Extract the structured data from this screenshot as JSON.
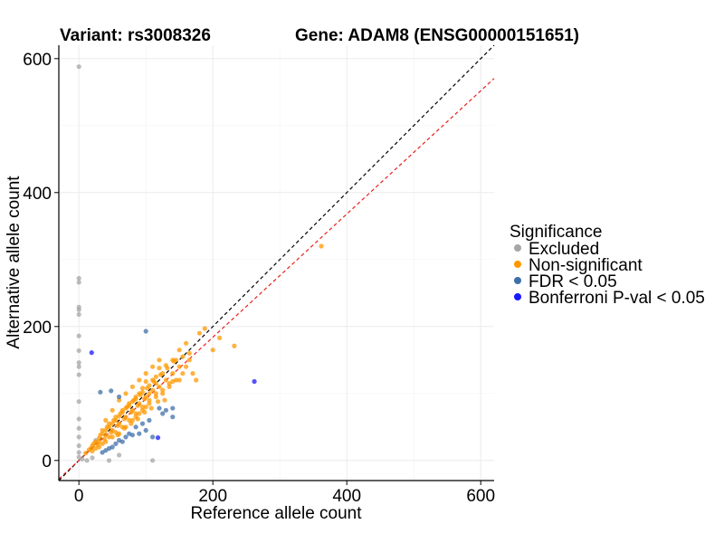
{
  "chart_data": {
    "type": "scatter",
    "title_left": "Variant: rs3008326",
    "title_right": "Gene: ADAM8 (ENSG00000151651)",
    "xlabel": "Reference allele count",
    "ylabel": "Alternative allele count",
    "xlim": [
      -30,
      620
    ],
    "ylim": [
      -30,
      620
    ],
    "xticks": [
      0,
      200,
      400,
      600
    ],
    "yticks": [
      0,
      200,
      400,
      600
    ],
    "grid": true,
    "legend": {
      "title": "Significance",
      "position": "right",
      "entries": [
        {
          "label": "Excluded",
          "color": "#a6a6a6"
        },
        {
          "label": "Non-significant",
          "color": "#ff9800"
        },
        {
          "label": "FDR < 0.05",
          "color": "#3f6fa8"
        },
        {
          "label": "Bonferroni P-val < 0.05",
          "color": "#1818ff"
        }
      ]
    },
    "reference_lines": [
      {
        "name": "identity",
        "slope": 1.0,
        "intercept": 0,
        "color": "#000000",
        "dash": "dashed"
      },
      {
        "name": "fitted",
        "slope": 0.92,
        "intercept": 0,
        "color": "#e8201a",
        "dash": "dashed"
      }
    ],
    "series": [
      {
        "name": "Excluded",
        "color": "#a6a6a6",
        "points": [
          [
            0,
            588
          ],
          [
            0,
            272
          ],
          [
            0,
            266
          ],
          [
            0,
            229
          ],
          [
            0,
            225
          ],
          [
            0,
            218
          ],
          [
            0,
            186
          ],
          [
            0,
            164
          ],
          [
            0,
            146
          ],
          [
            0,
            140
          ],
          [
            0,
            128
          ],
          [
            0,
            88
          ],
          [
            0,
            62
          ],
          [
            0,
            48
          ],
          [
            0,
            35
          ],
          [
            0,
            22
          ],
          [
            0,
            12
          ],
          [
            0,
            5
          ],
          [
            5,
            2
          ],
          [
            12,
            0
          ],
          [
            20,
            4
          ],
          [
            45,
            0
          ],
          [
            60,
            8
          ],
          [
            110,
            0
          ],
          [
            25,
            30
          ]
        ]
      },
      {
        "name": "Non-significant",
        "color": "#ff9800",
        "points": [
          [
            362,
            320
          ],
          [
            210,
            183
          ],
          [
            232,
            171
          ],
          [
            188,
            197
          ],
          [
            180,
            190
          ],
          [
            160,
            175
          ],
          [
            170,
            130
          ],
          [
            175,
            120
          ],
          [
            165,
            150
          ],
          [
            150,
            165
          ],
          [
            140,
            150
          ],
          [
            130,
            142
          ],
          [
            120,
            138
          ],
          [
            110,
            120
          ],
          [
            100,
            118
          ],
          [
            95,
            108
          ],
          [
            90,
            100
          ],
          [
            85,
            95
          ],
          [
            80,
            88
          ],
          [
            75,
            82
          ],
          [
            70,
            78
          ],
          [
            65,
            72
          ],
          [
            60,
            66
          ],
          [
            55,
            60
          ],
          [
            50,
            55
          ],
          [
            45,
            50
          ],
          [
            40,
            45
          ],
          [
            35,
            40
          ],
          [
            30,
            33
          ],
          [
            25,
            28
          ],
          [
            20,
            22
          ],
          [
            15,
            16
          ],
          [
            10,
            11
          ],
          [
            120,
            110
          ],
          [
            110,
            105
          ],
          [
            100,
            95
          ],
          [
            90,
            85
          ],
          [
            80,
            75
          ],
          [
            70,
            65
          ],
          [
            60,
            55
          ],
          [
            50,
            45
          ],
          [
            40,
            38
          ],
          [
            30,
            28
          ],
          [
            130,
            120
          ],
          [
            125,
            130
          ],
          [
            115,
            125
          ],
          [
            105,
            112
          ],
          [
            95,
            102
          ],
          [
            85,
            92
          ],
          [
            75,
            85
          ],
          [
            65,
            75
          ],
          [
            55,
            65
          ],
          [
            45,
            55
          ],
          [
            35,
            45
          ],
          [
            140,
            130
          ],
          [
            150,
            140
          ],
          [
            135,
            115
          ],
          [
            125,
            105
          ],
          [
            115,
            100
          ],
          [
            105,
            90
          ],
          [
            95,
            80
          ],
          [
            85,
            70
          ],
          [
            75,
            60
          ],
          [
            65,
            50
          ],
          [
            55,
            42
          ],
          [
            155,
            155
          ],
          [
            145,
            150
          ],
          [
            120,
            150
          ],
          [
            110,
            140
          ],
          [
            100,
            130
          ],
          [
            90,
            120
          ],
          [
            80,
            110
          ],
          [
            70,
            100
          ],
          [
            60,
            90
          ],
          [
            50,
            75
          ],
          [
            40,
            60
          ],
          [
            70,
            50
          ],
          [
            80,
            60
          ],
          [
            90,
            70
          ],
          [
            100,
            80
          ],
          [
            60,
            40
          ],
          [
            50,
            35
          ],
          [
            40,
            28
          ],
          [
            30,
            20
          ],
          [
            20,
            14
          ],
          [
            105,
            100
          ],
          [
            115,
            115
          ],
          [
            98,
            92
          ],
          [
            88,
            82
          ],
          [
            78,
            72
          ],
          [
            68,
            62
          ],
          [
            58,
            52
          ],
          [
            48,
            42
          ],
          [
            38,
            32
          ],
          [
            28,
            24
          ],
          [
            18,
            18
          ],
          [
            62,
            70
          ],
          [
            72,
            80
          ],
          [
            82,
            90
          ],
          [
            92,
            98
          ],
          [
            102,
            108
          ],
          [
            112,
            118
          ],
          [
            122,
            128
          ],
          [
            132,
            138
          ],
          [
            142,
            148
          ],
          [
            85,
            65
          ],
          [
            95,
            75
          ],
          [
            105,
            85
          ],
          [
            115,
            95
          ],
          [
            125,
            100
          ],
          [
            135,
            110
          ],
          [
            145,
            120
          ],
          [
            45,
            35
          ],
          [
            35,
            25
          ],
          [
            25,
            18
          ],
          [
            128,
            90
          ],
          [
            118,
            88
          ],
          [
            108,
            78
          ],
          [
            98,
            72
          ],
          [
            88,
            62
          ],
          [
            78,
            55
          ],
          [
            68,
            48
          ],
          [
            58,
            38
          ],
          [
            52,
            60
          ],
          [
            42,
            50
          ],
          [
            32,
            38
          ],
          [
            22,
            25
          ],
          [
            155,
            130
          ],
          [
            160,
            140
          ],
          [
            165,
            160
          ],
          [
            150,
            120
          ],
          [
            140,
            118
          ],
          [
            200,
            165
          ]
        ]
      },
      {
        "name": "FDR < 0.05",
        "color": "#3f6fa8",
        "points": [
          [
            100,
            193
          ],
          [
            48,
            104
          ],
          [
            32,
            102
          ],
          [
            60,
            95
          ],
          [
            140,
            78
          ],
          [
            120,
            78
          ],
          [
            130,
            75
          ],
          [
            140,
            65
          ],
          [
            100,
            45
          ],
          [
            90,
            40
          ],
          [
            80,
            38
          ],
          [
            70,
            35
          ],
          [
            60,
            30
          ],
          [
            50,
            20
          ],
          [
            40,
            15
          ],
          [
            110,
            35
          ],
          [
            85,
            50
          ],
          [
            95,
            55
          ],
          [
            75,
            40
          ],
          [
            55,
            25
          ],
          [
            45,
            18
          ],
          [
            35,
            12
          ],
          [
            65,
            28
          ],
          [
            105,
            60
          ],
          [
            125,
            70
          ]
        ]
      },
      {
        "name": "Bonferroni P-val < 0.05",
        "color": "#1818ff",
        "points": [
          [
            19,
            161
          ],
          [
            262,
            118
          ],
          [
            118,
            34
          ]
        ]
      }
    ]
  }
}
